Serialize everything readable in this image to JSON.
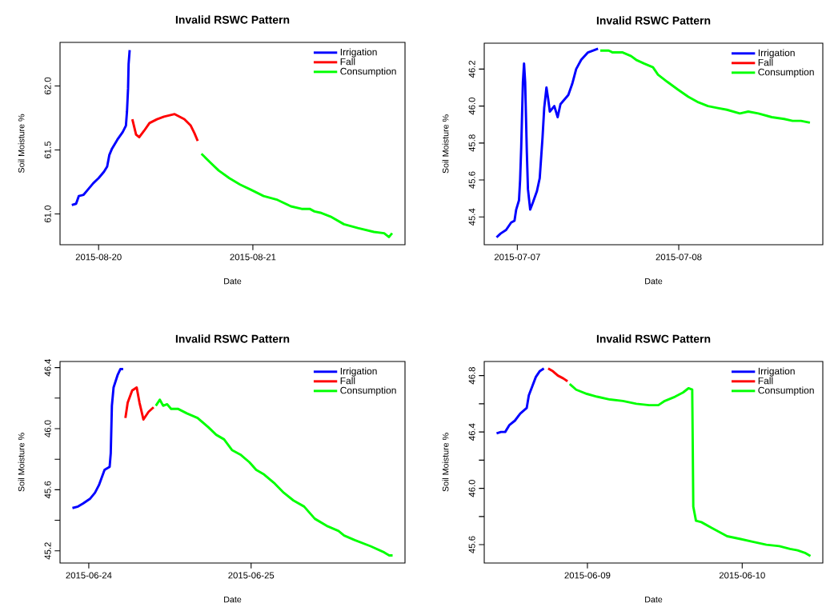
{
  "chart_data": [
    {
      "type": "line",
      "title": "Invalid RSWC Pattern",
      "xlabel": "Date",
      "ylabel": "Soil Moisture %",
      "legend": "top right",
      "xlim": [
        "2015-08-19T18:00",
        "2015-08-21T23:40"
      ],
      "xticks": [
        "2015-08-20",
        "2015-08-21"
      ],
      "ylim": [
        60.76,
        62.34
      ],
      "yticks": [
        {
          "value": 61.0,
          "label": "61.0"
        },
        {
          "value": 61.5,
          "label": "61.5"
        },
        {
          "value": 62.0,
          "label": "62.0"
        }
      ],
      "series": [
        {
          "name": "Irrigation",
          "color": "#0000ff",
          "x": [
            "2015-08-19T19:50",
            "2015-08-19T20:30",
            "2015-08-19T20:55",
            "2015-08-19T21:40",
            "2015-08-19T22:20",
            "2015-08-19T23:10",
            "2015-08-20T00:00",
            "2015-08-20T00:50",
            "2015-08-20T01:20",
            "2015-08-20T01:40",
            "2015-08-20T02:05",
            "2015-08-20T02:55",
            "2015-08-20T03:45",
            "2015-08-20T04:15",
            "2015-08-20T04:25",
            "2015-08-20T04:35",
            "2015-08-20T04:40",
            "2015-08-20T04:50"
          ],
          "values": [
            61.07,
            61.08,
            61.14,
            61.15,
            61.19,
            61.24,
            61.28,
            61.33,
            61.37,
            61.46,
            61.51,
            61.58,
            61.64,
            61.69,
            61.8,
            61.98,
            62.17,
            62.28
          ]
        },
        {
          "name": "Fall",
          "color": "#ff0000",
          "x": [
            "2015-08-20T05:15",
            "2015-08-20T05:50",
            "2015-08-20T06:20",
            "2015-08-20T07:05",
            "2015-08-20T07:55",
            "2015-08-20T09:05",
            "2015-08-20T10:10",
            "2015-08-20T11:50",
            "2015-08-20T13:20",
            "2015-08-20T14:20",
            "2015-08-20T14:55",
            "2015-08-20T15:25"
          ],
          "values": [
            61.74,
            61.62,
            61.6,
            61.65,
            61.71,
            61.74,
            61.76,
            61.78,
            61.74,
            61.69,
            61.63,
            61.57
          ]
        },
        {
          "name": "Consumption",
          "color": "#00ff00",
          "x": [
            "2015-08-20T16:00",
            "2015-08-20T17:25",
            "2015-08-20T18:40",
            "2015-08-20T20:20",
            "2015-08-20T22:00",
            "2015-08-20T23:40",
            "2015-08-21T01:40",
            "2015-08-21T03:50",
            "2015-08-21T05:55",
            "2015-08-21T07:35",
            "2015-08-21T08:50",
            "2015-08-21T09:35",
            "2015-08-21T10:30",
            "2015-08-21T12:05",
            "2015-08-21T14:10",
            "2015-08-21T16:20",
            "2015-08-21T18:50",
            "2015-08-21T20:25",
            "2015-08-21T21:10",
            "2015-08-21T21:40"
          ],
          "values": [
            61.47,
            61.4,
            61.34,
            61.28,
            61.23,
            61.19,
            61.14,
            61.11,
            61.06,
            61.04,
            61.04,
            61.02,
            61.01,
            60.98,
            60.92,
            60.89,
            60.86,
            60.85,
            60.82,
            60.85
          ]
        }
      ]
    },
    {
      "type": "line",
      "title": "Invalid RSWC Pattern",
      "xlabel": "Date",
      "ylabel": "Soil Moisture %",
      "legend": "top right",
      "xlim": [
        "2015-07-06T19:05",
        "2015-07-08T21:25"
      ],
      "xticks": [
        "2015-07-07",
        "2015-07-08"
      ],
      "ylim": [
        45.25,
        46.34
      ],
      "yticks": [
        {
          "value": 45.4,
          "label": "45.4"
        },
        {
          "value": 45.6,
          "label": "45.6"
        },
        {
          "value": 45.8,
          "label": "45.8"
        },
        {
          "value": 46.0,
          "label": "46.0"
        },
        {
          "value": 46.2,
          "label": "46.2"
        }
      ],
      "series": [
        {
          "name": "Irrigation",
          "color": "#0000ff",
          "x": [
            "2015-07-06T20:55",
            "2015-07-06T21:30",
            "2015-07-06T22:20",
            "2015-07-06T23:05",
            "2015-07-06T23:35",
            "2015-07-06T23:50",
            "2015-07-07T00:15",
            "2015-07-07T00:25",
            "2015-07-07T00:35",
            "2015-07-07T00:50",
            "2015-07-07T01:00",
            "2015-07-07T01:10",
            "2015-07-07T01:25",
            "2015-07-07T01:35",
            "2015-07-07T01:55",
            "2015-07-07T02:20",
            "2015-07-07T02:55",
            "2015-07-07T03:20",
            "2015-07-07T03:45",
            "2015-07-07T04:00",
            "2015-07-07T04:20",
            "2015-07-07T04:35",
            "2015-07-07T04:50",
            "2015-07-07T05:30",
            "2015-07-07T06:00",
            "2015-07-07T06:25",
            "2015-07-07T07:35",
            "2015-07-07T08:10",
            "2015-07-07T08:45",
            "2015-07-07T09:30",
            "2015-07-07T10:30",
            "2015-07-07T12:00"
          ],
          "values": [
            45.29,
            45.31,
            45.33,
            45.37,
            45.38,
            45.44,
            45.49,
            45.6,
            45.78,
            46.13,
            46.23,
            46.13,
            45.75,
            45.55,
            45.44,
            45.48,
            45.54,
            45.61,
            45.83,
            45.99,
            46.1,
            46.04,
            45.97,
            46.0,
            45.94,
            46.01,
            46.06,
            46.12,
            46.2,
            46.25,
            46.29,
            46.31
          ]
        },
        {
          "name": "Fall",
          "color": "#ff0000"
        },
        {
          "name": "Consumption",
          "color": "#00ff00",
          "x": [
            "2015-07-07T12:20",
            "2015-07-07T13:35",
            "2015-07-07T14:10",
            "2015-07-07T15:40",
            "2015-07-07T16:55",
            "2015-07-07T17:40",
            "2015-07-07T18:50",
            "2015-07-07T20:10",
            "2015-07-07T20:55",
            "2015-07-07T22:20",
            "2015-07-07T23:50",
            "2015-07-08T01:25",
            "2015-07-08T02:55",
            "2015-07-08T04:20",
            "2015-07-08T05:40",
            "2015-07-08T07:10",
            "2015-07-08T09:05",
            "2015-07-08T10:20",
            "2015-07-08T11:50",
            "2015-07-08T13:50",
            "2015-07-08T15:40",
            "2015-07-08T16:55",
            "2015-07-08T18:10",
            "2015-07-08T19:30"
          ],
          "values": [
            46.3,
            46.3,
            46.29,
            46.29,
            46.27,
            46.25,
            46.23,
            46.21,
            46.17,
            46.13,
            46.09,
            46.05,
            46.02,
            46.0,
            45.99,
            45.98,
            45.96,
            45.97,
            45.96,
            45.94,
            45.93,
            45.92,
            45.92,
            45.91
          ]
        }
      ]
    },
    {
      "type": "line",
      "title": "Invalid RSWC Pattern",
      "xlabel": "Date",
      "ylabel": "Soil Moisture %",
      "legend": "top right",
      "xlim": [
        "2015-06-23T19:45",
        "2015-06-25T22:45"
      ],
      "xticks": [
        "2015-06-24",
        "2015-06-25"
      ],
      "ylim": [
        45.12,
        46.44
      ],
      "yticks": [
        {
          "value": 45.2,
          "label": "45.2"
        },
        {
          "value": 45.4,
          "label": null
        },
        {
          "value": 45.6,
          "label": "45.6"
        },
        {
          "value": 45.8,
          "label": null
        },
        {
          "value": 46.0,
          "label": "46.0"
        },
        {
          "value": 46.2,
          "label": null
        },
        {
          "value": 46.4,
          "label": "46.4"
        }
      ],
      "series": [
        {
          "name": "Irrigation",
          "color": "#0000ff",
          "x": [
            "2015-06-23T21:35",
            "2015-06-23T22:25",
            "2015-06-23T23:10",
            "2015-06-24T00:10",
            "2015-06-24T00:55",
            "2015-06-24T01:30",
            "2015-06-24T02:20",
            "2015-06-24T03:05",
            "2015-06-24T03:15",
            "2015-06-24T03:25",
            "2015-06-24T03:40",
            "2015-06-24T04:15",
            "2015-06-24T04:40",
            "2015-06-24T05:05"
          ],
          "values": [
            45.48,
            45.49,
            45.51,
            45.54,
            45.58,
            45.63,
            45.73,
            45.75,
            45.84,
            46.15,
            46.27,
            46.35,
            46.39,
            46.39
          ]
        },
        {
          "name": "Fall",
          "color": "#ff0000",
          "x": [
            "2015-06-24T05:25",
            "2015-06-24T05:45",
            "2015-06-24T06:25",
            "2015-06-24T07:05",
            "2015-06-24T07:30",
            "2015-06-24T08:05",
            "2015-06-24T08:50",
            "2015-06-24T09:35"
          ],
          "values": [
            46.07,
            46.17,
            46.25,
            46.27,
            46.17,
            46.06,
            46.11,
            46.14
          ]
        },
        {
          "name": "Consumption",
          "color": "#00ff00",
          "x": [
            "2015-06-24T09:55",
            "2015-06-24T10:30",
            "2015-06-24T11:00",
            "2015-06-24T11:35",
            "2015-06-24T12:10",
            "2015-06-24T13:10",
            "2015-06-24T14:30",
            "2015-06-24T16:05",
            "2015-06-24T17:40",
            "2015-06-24T18:50",
            "2015-06-24T20:00",
            "2015-06-24T21:10",
            "2015-06-24T22:25",
            "2015-06-24T23:45",
            "2015-06-25T00:45",
            "2015-06-25T01:55",
            "2015-06-25T03:30",
            "2015-06-25T04:50",
            "2015-06-25T06:15",
            "2015-06-25T07:50",
            "2015-06-25T09:25",
            "2015-06-25T11:20",
            "2015-06-25T12:55",
            "2015-06-25T13:45",
            "2015-06-25T15:20",
            "2015-06-25T17:40",
            "2015-06-25T19:40",
            "2015-06-25T20:25",
            "2015-06-25T20:55"
          ],
          "values": [
            46.15,
            46.19,
            46.15,
            46.16,
            46.13,
            46.13,
            46.1,
            46.07,
            46.01,
            45.96,
            45.93,
            45.86,
            45.83,
            45.78,
            45.73,
            45.7,
            45.64,
            45.58,
            45.53,
            45.49,
            45.41,
            45.36,
            45.33,
            45.3,
            45.27,
            45.23,
            45.19,
            45.17,
            45.17
          ]
        }
      ]
    },
    {
      "type": "line",
      "title": "Invalid RSWC Pattern",
      "xlabel": "Date",
      "ylabel": "Soil Moisture %",
      "legend": "top right",
      "xlim": [
        "2015-06-08T08:00",
        "2015-06-10T12:30"
      ],
      "xticks": [
        "2015-06-09",
        "2015-06-10"
      ],
      "ylim": [
        45.47,
        46.9
      ],
      "yticks": [
        {
          "value": 45.6,
          "label": "45.6"
        },
        {
          "value": 45.8,
          "label": null
        },
        {
          "value": 46.0,
          "label": "46.0"
        },
        {
          "value": 46.2,
          "label": null
        },
        {
          "value": 46.4,
          "label": "46.4"
        },
        {
          "value": 46.6,
          "label": null
        },
        {
          "value": 46.8,
          "label": "46.8"
        }
      ],
      "series": [
        {
          "name": "Irrigation",
          "color": "#0000ff",
          "x": [
            "2015-06-08T09:55",
            "2015-06-08T10:35",
            "2015-06-08T11:15",
            "2015-06-08T11:55",
            "2015-06-08T12:45",
            "2015-06-08T13:35",
            "2015-06-08T14:35",
            "2015-06-08T14:55",
            "2015-06-08T15:25",
            "2015-06-08T16:00",
            "2015-06-08T16:35",
            "2015-06-08T17:15"
          ],
          "values": [
            46.39,
            46.4,
            46.4,
            46.45,
            46.48,
            46.53,
            46.57,
            46.66,
            46.72,
            46.79,
            46.83,
            46.85
          ]
        },
        {
          "name": "Fall",
          "color": "#ff0000",
          "x": [
            "2015-06-08T17:55",
            "2015-06-08T18:40",
            "2015-06-08T19:25",
            "2015-06-08T20:15",
            "2015-06-08T20:55"
          ],
          "values": [
            46.85,
            46.83,
            46.8,
            46.78,
            46.76
          ]
        },
        {
          "name": "Consumption",
          "color": "#00ff00",
          "x": [
            "2015-06-08T21:15",
            "2015-06-08T22:15",
            "2015-06-08T23:55",
            "2015-06-09T01:30",
            "2015-06-09T03:30",
            "2015-06-09T05:30",
            "2015-06-09T07:35",
            "2015-06-09T09:35",
            "2015-06-09T11:00",
            "2015-06-09T12:00",
            "2015-06-09T13:35",
            "2015-06-09T14:50",
            "2015-06-09T15:40",
            "2015-06-09T16:15",
            "2015-06-09T16:20",
            "2015-06-09T16:25",
            "2015-06-09T16:50",
            "2015-06-09T17:40",
            "2015-06-09T19:15",
            "2015-06-09T21:40",
            "2015-06-09T23:45",
            "2015-06-10T01:45",
            "2015-06-10T03:45",
            "2015-06-10T05:45",
            "2015-06-10T07:25",
            "2015-06-10T08:35",
            "2015-06-10T09:50",
            "2015-06-10T10:35"
          ],
          "values": [
            46.74,
            46.7,
            46.67,
            46.65,
            46.63,
            46.62,
            46.6,
            46.59,
            46.59,
            46.62,
            46.65,
            46.68,
            46.71,
            46.7,
            46.3,
            45.87,
            45.77,
            45.76,
            45.72,
            45.66,
            45.64,
            45.62,
            45.6,
            45.59,
            45.57,
            45.56,
            45.54,
            45.52
          ]
        }
      ]
    }
  ]
}
